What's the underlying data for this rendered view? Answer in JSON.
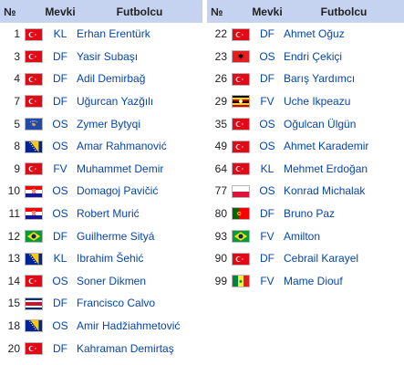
{
  "headers": {
    "num": "№",
    "pos": "Mevki",
    "player": "Futbolcu"
  },
  "left_rows": [
    {
      "num": "1",
      "flag": "turkey",
      "pos": "KL",
      "player": "Erhan Erentürk"
    },
    {
      "num": "3",
      "flag": "turkey",
      "pos": "DF",
      "player": "Yasir Subaşı"
    },
    {
      "num": "4",
      "flag": "turkey",
      "pos": "DF",
      "player": "Adil Demirbağ"
    },
    {
      "num": "7",
      "flag": "turkey",
      "pos": "DF",
      "player": "Uğurcan Yazğılı"
    },
    {
      "num": "5",
      "flag": "kosovo",
      "pos": "OS",
      "player": "Zymer Bytyqi"
    },
    {
      "num": "8",
      "flag": "bosnia",
      "pos": "OS",
      "player": "Amar Rahmanović"
    },
    {
      "num": "9",
      "flag": "turkey",
      "pos": "FV",
      "player": "Muhammet Demir"
    },
    {
      "num": "10",
      "flag": "croatia",
      "pos": "OS",
      "player": "Domagoj Pavičić"
    },
    {
      "num": "11",
      "flag": "croatia",
      "pos": "OS",
      "player": "Robert Murić"
    },
    {
      "num": "12",
      "flag": "brazil",
      "pos": "DF",
      "player": "Guilherme Sityá"
    },
    {
      "num": "13",
      "flag": "bosnia",
      "pos": "KL",
      "player": "Ibrahim Šehić"
    },
    {
      "num": "14",
      "flag": "turkey",
      "pos": "OS",
      "player": "Soner Dikmen"
    },
    {
      "num": "15",
      "flag": "costarica",
      "pos": "DF",
      "player": "Francisco Calvo"
    },
    {
      "num": "18",
      "flag": "bosnia",
      "pos": "OS",
      "player": "Amir Hadžiahmetović"
    },
    {
      "num": "20",
      "flag": "turkey",
      "pos": "DF",
      "player": "Kahraman Demirtaş"
    }
  ],
  "right_rows": [
    {
      "num": "22",
      "flag": "turkey",
      "pos": "DF",
      "player": "Ahmet Oğuz"
    },
    {
      "num": "23",
      "flag": "albania",
      "pos": "OS",
      "player": "Endri Çekiçi"
    },
    {
      "num": "26",
      "flag": "turkey",
      "pos": "DF",
      "player": "Barış Yardımcı"
    },
    {
      "num": "29",
      "flag": "uganda",
      "pos": "FV",
      "player": "Uche Ikpeazu"
    },
    {
      "num": "35",
      "flag": "turkey",
      "pos": "OS",
      "player": "Oğulcan Ülgün"
    },
    {
      "num": "49",
      "flag": "turkey",
      "pos": "OS",
      "player": "Ahmet Karademir"
    },
    {
      "num": "64",
      "flag": "turkey",
      "pos": "KL",
      "player": "Mehmet Erdoğan"
    },
    {
      "num": "77",
      "flag": "poland",
      "pos": "OS",
      "player": "Konrad Michalak"
    },
    {
      "num": "80",
      "flag": "portugal",
      "pos": "DF",
      "player": "Bruno Paz"
    },
    {
      "num": "93",
      "flag": "brazil",
      "pos": "FV",
      "player": "Amilton"
    },
    {
      "num": "90",
      "flag": "turkey",
      "pos": "DF",
      "player": "Cebrail Karayel"
    },
    {
      "num": "99",
      "flag": "senegal",
      "pos": "FV",
      "player": "Mame Diouf"
    }
  ],
  "colors": {
    "header_bg": "#c5d3f0",
    "link": "#0645ad"
  }
}
